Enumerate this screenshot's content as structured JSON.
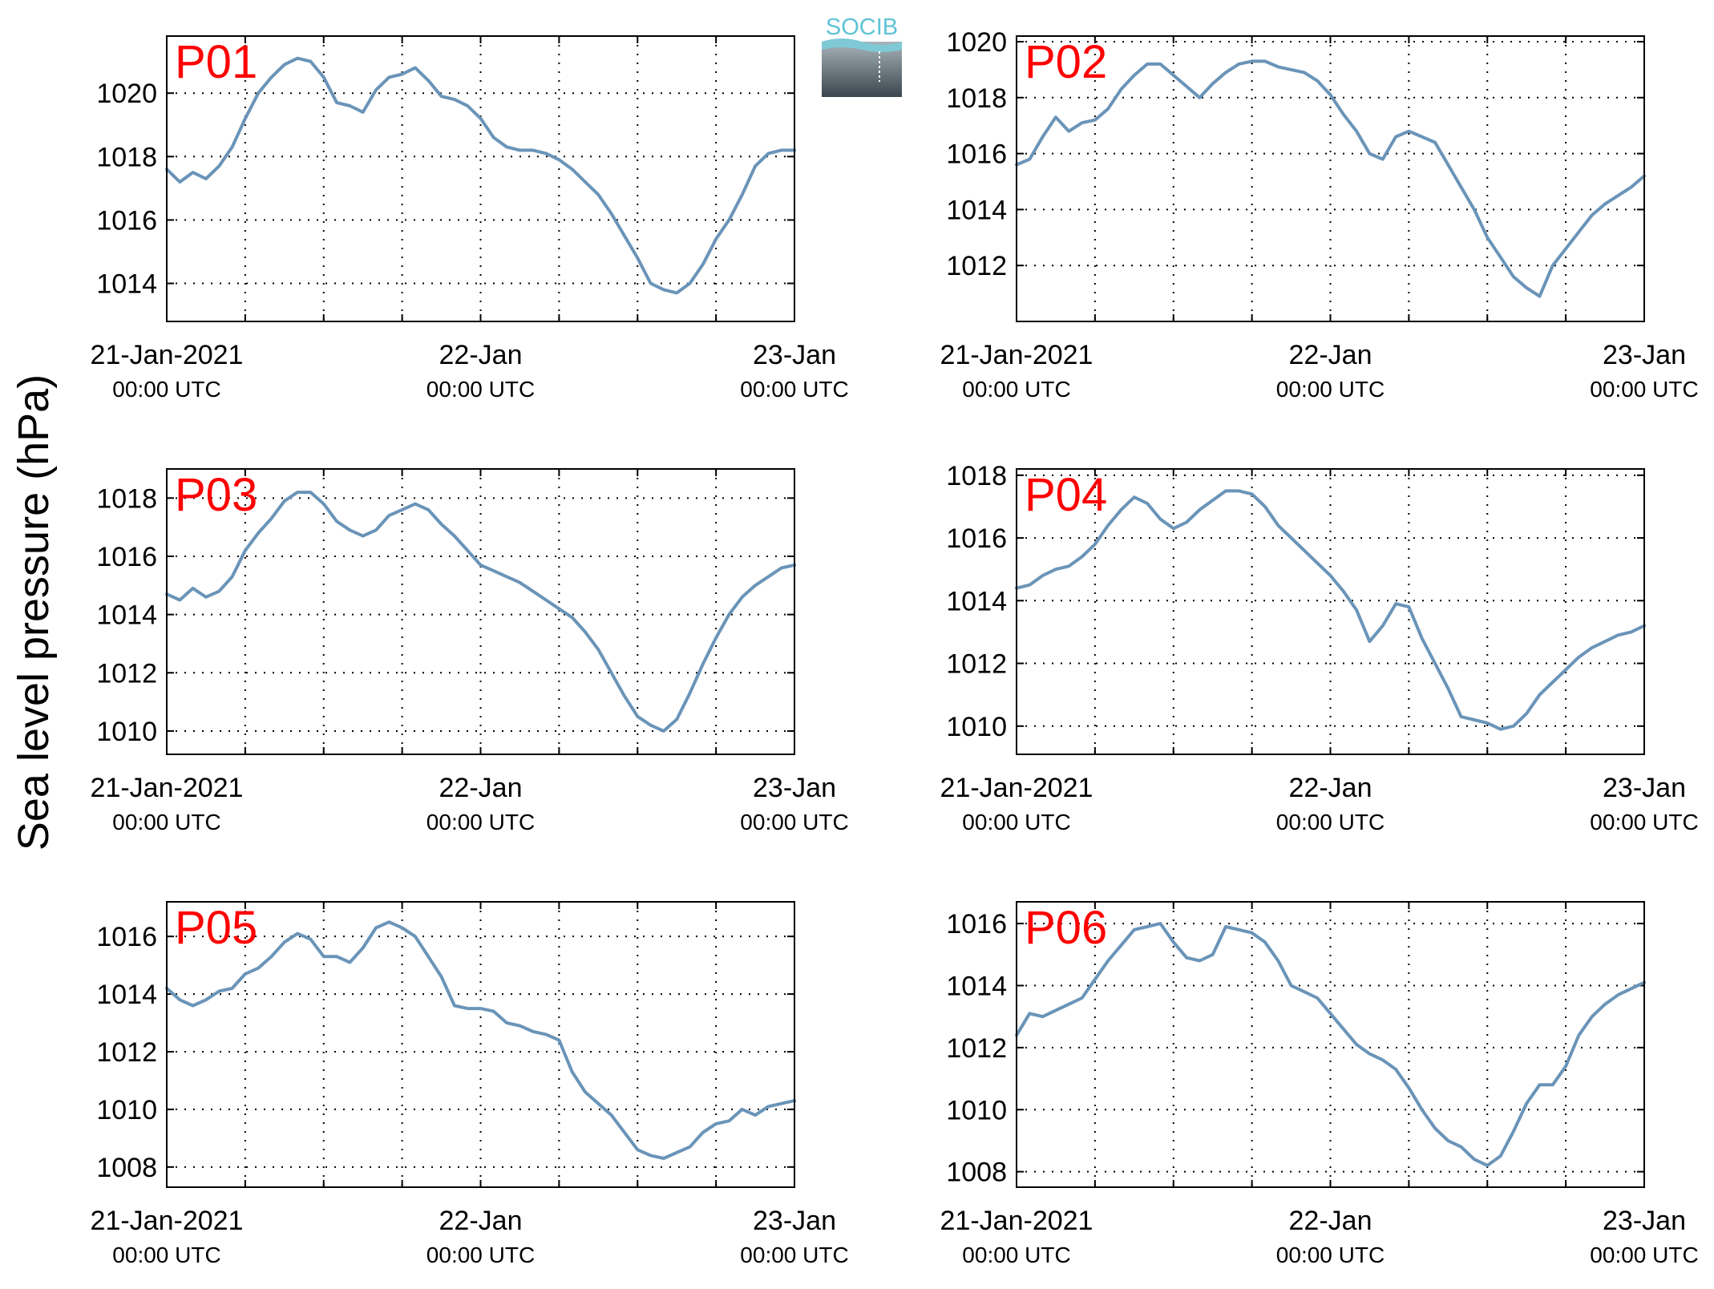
{
  "ylabel": "Sea level pressure (hPa)",
  "logo": {
    "text": "SOCIB"
  },
  "colors": {
    "line": "#6a94b8",
    "panel_label": "#ff0000",
    "axis": "#000000",
    "grid": "#000000"
  },
  "x_ticks": [
    {
      "pos": 0,
      "date": "21-Jan-2021",
      "time": "00:00 UTC"
    },
    {
      "pos": 24,
      "date": "22-Jan",
      "time": "00:00 UTC"
    },
    {
      "pos": 48,
      "date": "23-Jan",
      "time": "00:00 UTC"
    }
  ],
  "chart_data": [
    {
      "type": "line",
      "label": "P01",
      "xlim": [
        0,
        48
      ],
      "ylim": [
        1012.8,
        1021.8
      ],
      "yticks": [
        1014,
        1016,
        1018,
        1020
      ],
      "grid": true,
      "x": [
        0,
        1,
        2,
        3,
        4,
        5,
        6,
        7,
        8,
        9,
        10,
        11,
        12,
        13,
        14,
        15,
        16,
        17,
        18,
        19,
        20,
        21,
        22,
        23,
        24,
        25,
        26,
        27,
        28,
        29,
        30,
        31,
        32,
        33,
        34,
        35,
        36,
        37,
        38,
        39,
        40,
        41,
        42,
        43,
        44,
        45,
        46,
        47,
        48
      ],
      "values": [
        1017.6,
        1017.2,
        1017.5,
        1017.3,
        1017.7,
        1018.3,
        1019.2,
        1020.0,
        1020.5,
        1020.9,
        1021.1,
        1021.0,
        1020.5,
        1019.7,
        1019.6,
        1019.4,
        1020.1,
        1020.5,
        1020.6,
        1020.8,
        1020.4,
        1019.9,
        1019.8,
        1019.6,
        1019.2,
        1018.6,
        1018.3,
        1018.2,
        1018.2,
        1018.1,
        1017.9,
        1017.6,
        1017.2,
        1016.8,
        1016.2,
        1015.5,
        1014.8,
        1014.0,
        1013.8,
        1013.7,
        1014.0,
        1014.6,
        1015.4,
        1016.0,
        1016.8,
        1017.7,
        1018.1,
        1018.2,
        1018.2
      ]
    },
    {
      "type": "line",
      "label": "P02",
      "xlim": [
        0,
        48
      ],
      "ylim": [
        1010.0,
        1020.2
      ],
      "yticks": [
        1012,
        1014,
        1016,
        1018,
        1020
      ],
      "grid": true,
      "x": [
        0,
        1,
        2,
        3,
        4,
        5,
        6,
        7,
        8,
        9,
        10,
        11,
        12,
        13,
        14,
        15,
        16,
        17,
        18,
        19,
        20,
        21,
        22,
        23,
        24,
        25,
        26,
        27,
        28,
        29,
        30,
        31,
        32,
        33,
        34,
        35,
        36,
        37,
        38,
        39,
        40,
        41,
        42,
        43,
        44,
        45,
        46,
        47,
        48
      ],
      "values": [
        1015.6,
        1015.8,
        1016.6,
        1017.3,
        1016.8,
        1017.1,
        1017.2,
        1017.6,
        1018.3,
        1018.8,
        1019.2,
        1019.2,
        1018.8,
        1018.4,
        1018.0,
        1018.5,
        1018.9,
        1019.2,
        1019.3,
        1019.3,
        1019.1,
        1019.0,
        1018.9,
        1018.6,
        1018.1,
        1017.4,
        1016.8,
        1016.0,
        1015.8,
        1016.6,
        1016.8,
        1016.6,
        1016.4,
        1015.6,
        1014.8,
        1014.0,
        1013.0,
        1012.3,
        1011.6,
        1011.2,
        1010.9,
        1012.0,
        1012.6,
        1013.2,
        1013.8,
        1014.2,
        1014.5,
        1014.8,
        1015.2
      ]
    },
    {
      "type": "line",
      "label": "P03",
      "xlim": [
        0,
        48
      ],
      "ylim": [
        1009.2,
        1019.0
      ],
      "yticks": [
        1010,
        1012,
        1014,
        1016,
        1018
      ],
      "grid": true,
      "x": [
        0,
        1,
        2,
        3,
        4,
        5,
        6,
        7,
        8,
        9,
        10,
        11,
        12,
        13,
        14,
        15,
        16,
        17,
        18,
        19,
        20,
        21,
        22,
        23,
        24,
        25,
        26,
        27,
        28,
        29,
        30,
        31,
        32,
        33,
        34,
        35,
        36,
        37,
        38,
        39,
        40,
        41,
        42,
        43,
        44,
        45,
        46,
        47,
        48
      ],
      "values": [
        1014.7,
        1014.5,
        1014.9,
        1014.6,
        1014.8,
        1015.3,
        1016.2,
        1016.8,
        1017.3,
        1017.9,
        1018.2,
        1018.2,
        1017.8,
        1017.2,
        1016.9,
        1016.7,
        1016.9,
        1017.4,
        1017.6,
        1017.8,
        1017.6,
        1017.1,
        1016.7,
        1016.2,
        1015.7,
        1015.5,
        1015.3,
        1015.1,
        1014.8,
        1014.5,
        1014.2,
        1013.9,
        1013.4,
        1012.8,
        1012.0,
        1011.2,
        1010.5,
        1010.2,
        1010.0,
        1010.4,
        1011.3,
        1012.3,
        1013.2,
        1014.0,
        1014.6,
        1015.0,
        1015.3,
        1015.6,
        1015.7
      ]
    },
    {
      "type": "line",
      "label": "P04",
      "xlim": [
        0,
        48
      ],
      "ylim": [
        1009.1,
        1018.2
      ],
      "yticks": [
        1010,
        1012,
        1014,
        1016,
        1018
      ],
      "grid": true,
      "x": [
        0,
        1,
        2,
        3,
        4,
        5,
        6,
        7,
        8,
        9,
        10,
        11,
        12,
        13,
        14,
        15,
        16,
        17,
        18,
        19,
        20,
        21,
        22,
        23,
        24,
        25,
        26,
        27,
        28,
        29,
        30,
        31,
        32,
        33,
        34,
        35,
        36,
        37,
        38,
        39,
        40,
        41,
        42,
        43,
        44,
        45,
        46,
        47,
        48
      ],
      "values": [
        1014.4,
        1014.5,
        1014.8,
        1015.0,
        1015.1,
        1015.4,
        1015.8,
        1016.4,
        1016.9,
        1017.3,
        1017.1,
        1016.6,
        1016.3,
        1016.5,
        1016.9,
        1017.2,
        1017.5,
        1017.5,
        1017.4,
        1017.0,
        1016.4,
        1016.0,
        1015.6,
        1015.2,
        1014.8,
        1014.3,
        1013.7,
        1012.7,
        1013.2,
        1013.9,
        1013.8,
        1012.8,
        1012.0,
        1011.2,
        1010.3,
        1010.2,
        1010.1,
        1009.9,
        1010.0,
        1010.4,
        1011.0,
        1011.4,
        1011.8,
        1012.2,
        1012.5,
        1012.7,
        1012.9,
        1013.0,
        1013.2
      ]
    },
    {
      "type": "line",
      "label": "P05",
      "xlim": [
        0,
        48
      ],
      "ylim": [
        1007.3,
        1017.2
      ],
      "yticks": [
        1008,
        1010,
        1012,
        1014,
        1016
      ],
      "grid": true,
      "x": [
        0,
        1,
        2,
        3,
        4,
        5,
        6,
        7,
        8,
        9,
        10,
        11,
        12,
        13,
        14,
        15,
        16,
        17,
        18,
        19,
        20,
        21,
        22,
        23,
        24,
        25,
        26,
        27,
        28,
        29,
        30,
        31,
        32,
        33,
        34,
        35,
        36,
        37,
        38,
        39,
        40,
        41,
        42,
        43,
        44,
        45,
        46,
        47,
        48
      ],
      "values": [
        1014.2,
        1013.8,
        1013.6,
        1013.8,
        1014.1,
        1014.2,
        1014.7,
        1014.9,
        1015.3,
        1015.8,
        1016.1,
        1015.9,
        1015.3,
        1015.3,
        1015.1,
        1015.6,
        1016.3,
        1016.5,
        1016.3,
        1016.0,
        1015.3,
        1014.6,
        1013.6,
        1013.5,
        1013.5,
        1013.4,
        1013.0,
        1012.9,
        1012.7,
        1012.6,
        1012.4,
        1011.3,
        1010.6,
        1010.2,
        1009.8,
        1009.2,
        1008.6,
        1008.4,
        1008.3,
        1008.5,
        1008.7,
        1009.2,
        1009.5,
        1009.6,
        1010.0,
        1009.8,
        1010.1,
        1010.2,
        1010.3
      ]
    },
    {
      "type": "line",
      "label": "P06",
      "xlim": [
        0,
        48
      ],
      "ylim": [
        1007.5,
        1016.7
      ],
      "yticks": [
        1008,
        1010,
        1012,
        1014,
        1016
      ],
      "grid": true,
      "x": [
        0,
        1,
        2,
        3,
        4,
        5,
        6,
        7,
        8,
        9,
        10,
        11,
        12,
        13,
        14,
        15,
        16,
        17,
        18,
        19,
        20,
        21,
        22,
        23,
        24,
        25,
        26,
        27,
        28,
        29,
        30,
        31,
        32,
        33,
        34,
        35,
        36,
        37,
        38,
        39,
        40,
        41,
        42,
        43,
        44,
        45,
        46,
        47,
        48
      ],
      "values": [
        1012.4,
        1013.1,
        1013.0,
        1013.2,
        1013.4,
        1013.6,
        1014.2,
        1014.8,
        1015.3,
        1015.8,
        1015.9,
        1016.0,
        1015.4,
        1014.9,
        1014.8,
        1015.0,
        1015.9,
        1015.8,
        1015.7,
        1015.4,
        1014.8,
        1014.0,
        1013.8,
        1013.6,
        1013.1,
        1012.6,
        1012.1,
        1011.8,
        1011.6,
        1011.3,
        1010.7,
        1010.0,
        1009.4,
        1009.0,
        1008.8,
        1008.4,
        1008.2,
        1008.5,
        1009.3,
        1010.2,
        1010.8,
        1010.8,
        1011.4,
        1012.4,
        1013.0,
        1013.4,
        1013.7,
        1013.9,
        1014.1
      ]
    }
  ]
}
